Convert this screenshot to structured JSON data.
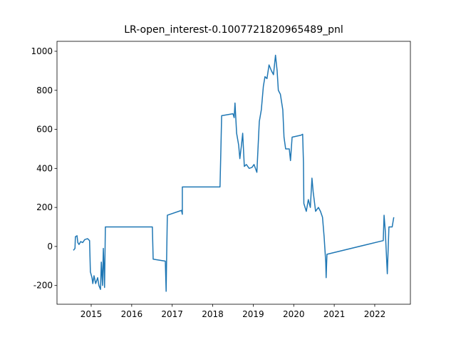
{
  "chart_data": {
    "type": "line",
    "title": "LR-open_interest-0.1007721820965489_pnl",
    "x": [
      2014.56,
      2014.6,
      2014.61,
      2014.65,
      2014.67,
      2014.7,
      2014.74,
      2014.79,
      2014.84,
      2014.91,
      2014.96,
      2014.98,
      2015.02,
      2015.04,
      2015.07,
      2015.11,
      2015.16,
      2015.19,
      2015.23,
      2015.25,
      2015.28,
      2015.3,
      2015.33,
      2015.35,
      2016.51,
      2016.53,
      2016.83,
      2016.85,
      2016.86,
      2016.88,
      2017.23,
      2017.25,
      2017.25,
      2018.18,
      2018.2,
      2018.22,
      2018.5,
      2018.53,
      2018.55,
      2018.59,
      2018.64,
      2018.67,
      2018.71,
      2018.74,
      2018.78,
      2018.83,
      2018.9,
      2018.97,
      2019.02,
      2019.09,
      2019.15,
      2019.2,
      2019.25,
      2019.29,
      2019.34,
      2019.39,
      2019.45,
      2019.5,
      2019.55,
      2019.59,
      2019.62,
      2019.67,
      2019.73,
      2019.76,
      2019.8,
      2019.89,
      2019.92,
      2019.96,
      2020.18,
      2020.22,
      2020.24,
      2020.25,
      2020.31,
      2020.36,
      2020.41,
      2020.45,
      2020.48,
      2020.54,
      2020.61,
      2020.66,
      2020.71,
      2020.75,
      2020.79,
      2020.8,
      2020.82,
      2022.21,
      2022.23,
      2022.26,
      2022.31,
      2022.35,
      2022.43,
      2022.47
    ],
    "series": [
      {
        "color": "#1f77b4",
        "values": [
          -20,
          -10,
          50,
          55,
          20,
          10,
          25,
          20,
          35,
          40,
          30,
          -130,
          -160,
          -190,
          -150,
          -190,
          -160,
          -200,
          -220,
          -80,
          -200,
          -10,
          -210,
          100,
          100,
          -65,
          -75,
          -230,
          -90,
          160,
          185,
          165,
          305,
          305,
          480,
          670,
          680,
          660,
          735,
          580,
          520,
          450,
          520,
          580,
          410,
          420,
          400,
          405,
          420,
          380,
          640,
          700,
          820,
          870,
          860,
          930,
          900,
          880,
          980,
          900,
          800,
          780,
          700,
          560,
          500,
          500,
          440,
          560,
          570,
          575,
          430,
          220,
          180,
          240,
          200,
          350,
          280,
          180,
          200,
          180,
          150,
          50,
          -80,
          -160,
          -40,
          30,
          160,
          80,
          -140,
          100,
          100,
          150
        ]
      }
    ],
    "xlim": [
      2014.156,
      2022.88
    ],
    "xticks": [
      2015,
      2016,
      2017,
      2018,
      2019,
      2020,
      2021,
      2022
    ],
    "ylim": [
      -296,
      1051
    ],
    "yticks": [
      -200,
      0,
      200,
      400,
      600,
      800,
      1000
    ]
  }
}
